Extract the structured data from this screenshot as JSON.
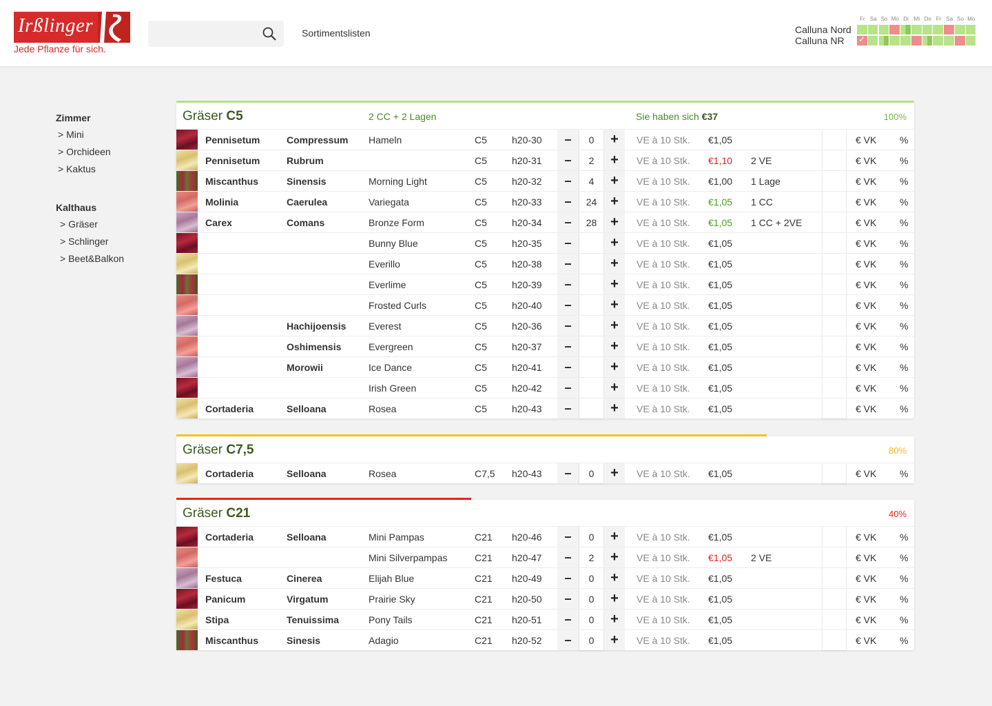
{
  "header": {
    "logo_name": "Irßlinger",
    "logo_tagline": "Jede Pflanze für sich.",
    "search_placeholder": "",
    "nav_link": "Sortimentslisten",
    "calendar": {
      "days": [
        "Fr",
        "Sa",
        "So",
        "Mo",
        "Di",
        "Mi",
        "Do",
        "Fr",
        "Sa",
        "So",
        "Mo"
      ],
      "locations": [
        {
          "name": "Calluna Nord",
          "cells": [
            "g",
            "g",
            "g",
            "r",
            "h",
            "g",
            "g",
            "g",
            "r",
            "g",
            "g"
          ]
        },
        {
          "name": "Calluna NR",
          "cells": [
            "c",
            "g",
            "h",
            "g",
            "g",
            "r",
            "h",
            "g",
            "g",
            "r",
            "g"
          ]
        }
      ]
    }
  },
  "sidebar": {
    "groups": [
      {
        "title": "Zimmer",
        "items": [
          "> Mini",
          "> Orchideen",
          "> Kaktus"
        ]
      },
      {
        "title": "Kalthaus",
        "items": [
          "> Gräser",
          "> Schlinger",
          "> Beet&Balkon"
        ]
      }
    ]
  },
  "sections": [
    {
      "title_prefix": "Gräser",
      "title_size": "C5",
      "subtitle": "2 CC + 2 Lagen",
      "saved_prefix": "Sie haben sich",
      "saved_value": "€37",
      "percent": "100%",
      "percent_value": 1.0,
      "color": "#b5e385",
      "pct_color": "#7ab83c",
      "rows": [
        {
          "img": "red",
          "genus": "Pennisetum",
          "species": "Compressum",
          "variety": "Hameln",
          "size": "C5",
          "code": "h20-30",
          "qty": "0",
          "ve": "VE à 10 Stk.",
          "price": "€1,05",
          "price_state": "",
          "note": "",
          "vk": "€ VK",
          "pct": "%"
        },
        {
          "img": "yellow",
          "genus": "Pennisetum",
          "species": "Rubrum",
          "variety": "",
          "size": "C5",
          "code": "h20-31",
          "qty": "2",
          "ve": "VE à 10 Stk.",
          "price": "€1,10",
          "price_state": "red",
          "note": "2 VE",
          "vk": "€ VK",
          "pct": "%"
        },
        {
          "img": "mixed",
          "genus": "Miscanthus",
          "species": "Sinensis",
          "variety": "Morning Light",
          "size": "C5",
          "code": "h20-32",
          "qty": "4",
          "ve": "VE à 10 Stk.",
          "price": "€1,00",
          "price_state": "",
          "note": "1 Lage",
          "vk": "€ VK",
          "pct": "%"
        },
        {
          "img": "pink",
          "genus": "Molinia",
          "species": "Caerulea",
          "variety": "Variegata",
          "size": "C5",
          "code": "h20-33",
          "qty": "24",
          "ve": "VE à 10 Stk.",
          "price": "€1,05",
          "price_state": "green",
          "note": "1 CC",
          "vk": "€ VK",
          "pct": "%"
        },
        {
          "img": "lilac",
          "genus": "Carex",
          "species": "Comans",
          "variety": "Bronze Form",
          "size": "C5",
          "code": "h20-34",
          "qty": "28",
          "ve": "VE à 10 Stk.",
          "price": "€1,05",
          "price_state": "green",
          "note": "1 CC + 2VE",
          "vk": "€ VK",
          "pct": "%"
        },
        {
          "img": "red",
          "genus": "",
          "species": "",
          "variety": "Bunny Blue",
          "size": "C5",
          "code": "h20-35",
          "qty": "",
          "ve": "VE à 10 Stk.",
          "price": "€1,05",
          "price_state": "",
          "note": "",
          "vk": "€ VK",
          "pct": "%"
        },
        {
          "img": "yellow",
          "genus": "",
          "species": "",
          "variety": "Everillo",
          "size": "C5",
          "code": "h20-38",
          "qty": "",
          "ve": "VE à 10 Stk.",
          "price": "€1,05",
          "price_state": "",
          "note": "",
          "vk": "€ VK",
          "pct": "%"
        },
        {
          "img": "mixed",
          "genus": "",
          "species": "",
          "variety": "Everlime",
          "size": "C5",
          "code": "h20-39",
          "qty": "",
          "ve": "VE à 10 Stk.",
          "price": "€1,05",
          "price_state": "",
          "note": "",
          "vk": "€ VK",
          "pct": "%"
        },
        {
          "img": "pink",
          "genus": "",
          "species": "",
          "variety": "Frosted Curls",
          "size": "C5",
          "code": "h20-40",
          "qty": "",
          "ve": "VE à 10 Stk.",
          "price": "€1,05",
          "price_state": "",
          "note": "",
          "vk": "€ VK",
          "pct": "%"
        },
        {
          "img": "lilac",
          "genus": "",
          "species": "Hachijoensis",
          "variety": "Everest",
          "size": "C5",
          "code": "h20-36",
          "qty": "",
          "ve": "VE à 10 Stk.",
          "price": "€1,05",
          "price_state": "",
          "note": "",
          "vk": "€ VK",
          "pct": "%"
        },
        {
          "img": "pink",
          "genus": "",
          "species": "Oshimensis",
          "variety": "Evergreen",
          "size": "C5",
          "code": "h20-37",
          "qty": "",
          "ve": "VE à 10 Stk.",
          "price": "€1,05",
          "price_state": "",
          "note": "",
          "vk": "€ VK",
          "pct": "%"
        },
        {
          "img": "lilac",
          "genus": "",
          "species": "Morowii",
          "variety": "Ice Dance",
          "size": "C5",
          "code": "h20-41",
          "qty": "",
          "ve": "VE à 10 Stk.",
          "price": "€1,05",
          "price_state": "",
          "note": "",
          "vk": "€ VK",
          "pct": "%"
        },
        {
          "img": "red",
          "genus": "",
          "species": "",
          "variety": "Irish Green",
          "size": "C5",
          "code": "h20-42",
          "qty": "",
          "ve": "VE à 10 Stk.",
          "price": "€1,05",
          "price_state": "",
          "note": "",
          "vk": "€ VK",
          "pct": "%"
        },
        {
          "img": "yellow",
          "genus": "Cortaderia",
          "species": "Selloana",
          "variety": "Rosea",
          "size": "C5",
          "code": "h20-43",
          "qty": "",
          "ve": "VE à 10 Stk.",
          "price": "€1,05",
          "price_state": "",
          "note": "",
          "vk": "€ VK",
          "pct": "%"
        }
      ]
    },
    {
      "title_prefix": "Gräser",
      "title_size": "C7,5",
      "subtitle": "",
      "saved_prefix": "",
      "saved_value": "",
      "percent": "80%",
      "percent_value": 0.8,
      "color": "#f2c31c",
      "pct_color": "#f2b81c",
      "rows": [
        {
          "img": "yellow",
          "genus": "Cortaderia",
          "species": "Selloana",
          "variety": "Rosea",
          "size": "C7,5",
          "code": "h20-43",
          "qty": "0",
          "ve": "VE à 10 Stk.",
          "price": "€1,05",
          "price_state": "",
          "note": "",
          "vk": "€ VK",
          "pct": "%"
        }
      ]
    },
    {
      "title_prefix": "Gräser",
      "title_size": "C21",
      "subtitle": "",
      "saved_prefix": "",
      "saved_value": "",
      "percent": "40%",
      "percent_value": 0.4,
      "color": "#e0281e",
      "pct_color": "#e0281e",
      "rows": [
        {
          "img": "red",
          "genus": "Cortaderia",
          "species": "Selloana",
          "variety": "Mini Pampas",
          "size": "C21",
          "code": "h20-46",
          "qty": "0",
          "ve": "VE à 10 Stk.",
          "price": "€1,05",
          "price_state": "",
          "note": "",
          "vk": "€ VK",
          "pct": "%"
        },
        {
          "img": "pink",
          "genus": "",
          "species": "",
          "variety": "Mini Silverpampas",
          "size": "C21",
          "code": "h20-47",
          "qty": "2",
          "ve": "VE à 10 Stk.",
          "price": "€1,05",
          "price_state": "red",
          "note": "2 VE",
          "vk": "€ VK",
          "pct": "%"
        },
        {
          "img": "lilac",
          "genus": "Festuca",
          "species": "Cinerea",
          "variety": "Elijah Blue",
          "size": "C21",
          "code": "h20-49",
          "qty": "0",
          "ve": "VE à 10 Stk.",
          "price": "€1,05",
          "price_state": "",
          "note": "",
          "vk": "€ VK",
          "pct": "%"
        },
        {
          "img": "red",
          "genus": "Panicum",
          "species": "Virgatum",
          "variety": "Prairie Sky",
          "size": "C21",
          "code": "h20-50",
          "qty": "0",
          "ve": "VE à 10 Stk.",
          "price": "€1,05",
          "price_state": "",
          "note": "",
          "vk": "€ VK",
          "pct": "%"
        },
        {
          "img": "yellow",
          "genus": "Stipa",
          "species": "Tenuissima",
          "variety": "Pony Tails",
          "size": "C21",
          "code": "h20-51",
          "qty": "0",
          "ve": "VE à 10 Stk.",
          "price": "€1,05",
          "price_state": "",
          "note": "",
          "vk": "€ VK",
          "pct": "%"
        },
        {
          "img": "mixed",
          "genus": "Miscanthus",
          "species": "Sinesis",
          "variety": "Adagio",
          "size": "C21",
          "code": "h20-52",
          "qty": "0",
          "ve": "VE à 10 Stk.",
          "price": "€1,05",
          "price_state": "",
          "note": "",
          "vk": "€ VK",
          "pct": "%"
        }
      ]
    }
  ]
}
